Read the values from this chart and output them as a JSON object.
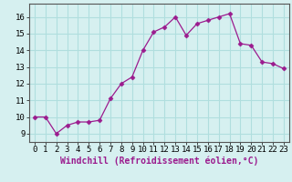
{
  "x": [
    0,
    1,
    2,
    3,
    4,
    5,
    6,
    7,
    8,
    9,
    10,
    11,
    12,
    13,
    14,
    15,
    16,
    17,
    18,
    19,
    20,
    21,
    22,
    23
  ],
  "y": [
    10,
    10,
    9,
    9.5,
    9.7,
    9.7,
    9.8,
    11.1,
    12.0,
    12.4,
    14.0,
    15.1,
    15.4,
    16.0,
    14.9,
    15.6,
    15.8,
    16.0,
    16.2,
    14.4,
    14.3,
    13.3,
    13.2,
    12.9
  ],
  "line_color": "#9B1B8E",
  "marker": "D",
  "marker_size": 2.5,
  "bg_color": "#d6f0f0",
  "grid_color": "#b0dede",
  "xlabel": "Windchill (Refroidissement éolien,°C)",
  "xlabel_fontsize": 7,
  "xlim": [
    -0.5,
    23.5
  ],
  "ylim": [
    8.5,
    16.8
  ],
  "yticks": [
    9,
    10,
    11,
    12,
    13,
    14,
    15,
    16
  ],
  "xticks": [
    0,
    1,
    2,
    3,
    4,
    5,
    6,
    7,
    8,
    9,
    10,
    11,
    12,
    13,
    14,
    15,
    16,
    17,
    18,
    19,
    20,
    21,
    22,
    23
  ],
  "tick_fontsize": 6.5
}
